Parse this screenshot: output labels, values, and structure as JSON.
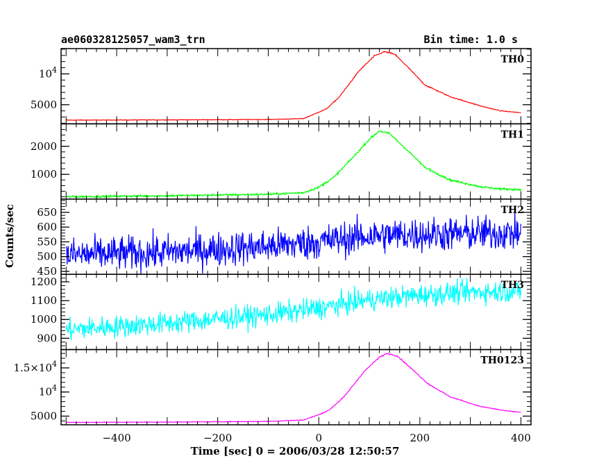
{
  "header": {
    "left_title": "ae060328125057_wam3_trn",
    "right_title": "Bin time: 1.0 s"
  },
  "chart_data": {
    "type": "line",
    "x_label": "Time [sec] 0 = 2006/03/28 12:50:57",
    "y_label": "Counts/sec",
    "x_range": [
      -510,
      420
    ],
    "x_ticks": [
      {
        "value": -400,
        "label": "−400"
      },
      {
        "value": -200,
        "label": "−200"
      },
      {
        "value": 0,
        "label": "0"
      },
      {
        "value": 200,
        "label": "200"
      },
      {
        "value": 400,
        "label": "400"
      }
    ],
    "grid": false,
    "panels": [
      {
        "name": "TH0",
        "color": "#ff0000",
        "ylim": [
          1900,
          14100
        ],
        "y_ticks": [
          {
            "value": 5000,
            "label": "5000"
          },
          {
            "value": 10000,
            "label": "10^4"
          }
        ],
        "keypoints": [
          [
            -500,
            2500
          ],
          [
            -300,
            2540
          ],
          [
            -100,
            2600
          ],
          [
            -30,
            2750
          ],
          [
            0,
            3800
          ],
          [
            15,
            4300
          ],
          [
            40,
            6200
          ],
          [
            80,
            10500
          ],
          [
            110,
            12900
          ],
          [
            130,
            13600
          ],
          [
            150,
            13200
          ],
          [
            175,
            11200
          ],
          [
            210,
            8200
          ],
          [
            260,
            6300
          ],
          [
            320,
            4800
          ],
          [
            360,
            4000
          ],
          [
            400,
            3700
          ]
        ],
        "noise": 70
      },
      {
        "name": "TH1",
        "color": "#00ff00",
        "ylim": [
          120,
          2800
        ],
        "y_ticks": [
          {
            "value": 1000,
            "label": "1000"
          },
          {
            "value": 2000,
            "label": "2000"
          }
        ],
        "keypoints": [
          [
            -500,
            200
          ],
          [
            -300,
            240
          ],
          [
            -100,
            290
          ],
          [
            -30,
            350
          ],
          [
            0,
            540
          ],
          [
            30,
            900
          ],
          [
            70,
            1650
          ],
          [
            100,
            2250
          ],
          [
            120,
            2550
          ],
          [
            140,
            2450
          ],
          [
            170,
            1950
          ],
          [
            210,
            1250
          ],
          [
            260,
            800
          ],
          [
            320,
            560
          ],
          [
            360,
            480
          ],
          [
            400,
            460
          ]
        ],
        "noise": 45
      },
      {
        "name": "TH2",
        "color": "#0000ff",
        "ylim": [
          440,
          695
        ],
        "y_ticks": [
          {
            "value": 450,
            "label": "450"
          },
          {
            "value": 500,
            "label": "500"
          },
          {
            "value": 550,
            "label": "550"
          },
          {
            "value": 600,
            "label": "600"
          },
          {
            "value": 650,
            "label": "650"
          }
        ],
        "keypoints": [
          [
            -500,
            505
          ],
          [
            -300,
            515
          ],
          [
            -100,
            535
          ],
          [
            0,
            550
          ],
          [
            100,
            570
          ],
          [
            200,
            575
          ],
          [
            300,
            578
          ],
          [
            400,
            580
          ]
        ],
        "noise": 42
      },
      {
        "name": "TH3",
        "color": "#00ffff",
        "ylim": [
          840,
          1240
        ],
        "y_ticks": [
          {
            "value": 900,
            "label": "900"
          },
          {
            "value": 1000,
            "label": "1000"
          },
          {
            "value": 1100,
            "label": "1100"
          },
          {
            "value": 1200,
            "label": "1200"
          }
        ],
        "keypoints": [
          [
            -500,
            945
          ],
          [
            -300,
            980
          ],
          [
            -100,
            1025
          ],
          [
            0,
            1060
          ],
          [
            100,
            1105
          ],
          [
            200,
            1130
          ],
          [
            300,
            1145
          ],
          [
            400,
            1150
          ]
        ],
        "noise": 42
      },
      {
        "name": "TH0123",
        "color": "#ff00ff",
        "ylim": [
          3200,
          18800
        ],
        "y_ticks": [
          {
            "value": 5000,
            "label": "5000"
          },
          {
            "value": 10000,
            "label": "10^4"
          },
          {
            "value": 15000,
            "label": "1.5×10^4"
          }
        ],
        "keypoints": [
          [
            -500,
            3700
          ],
          [
            -300,
            3760
          ],
          [
            -100,
            3900
          ],
          [
            -30,
            4200
          ],
          [
            0,
            5300
          ],
          [
            20,
            6200
          ],
          [
            50,
            9000
          ],
          [
            90,
            14300
          ],
          [
            120,
            17200
          ],
          [
            135,
            18000
          ],
          [
            155,
            17500
          ],
          [
            185,
            14700
          ],
          [
            215,
            11800
          ],
          [
            260,
            9000
          ],
          [
            320,
            7000
          ],
          [
            370,
            6100
          ],
          [
            400,
            5800
          ]
        ],
        "noise": 80
      }
    ]
  }
}
